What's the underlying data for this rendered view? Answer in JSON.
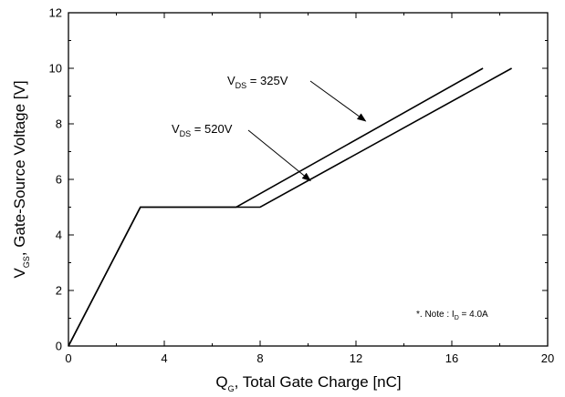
{
  "chart_data": {
    "type": "line",
    "title": "",
    "xlabel": {
      "main": "Q",
      "sub": "G",
      "rest": ", Total Gate Charge [nC]"
    },
    "ylabel": {
      "main": "V",
      "sub": "GS",
      "rest": ", Gate-Source Voltage [V]"
    },
    "xlim": [
      0,
      20
    ],
    "ylim": [
      0,
      12
    ],
    "xticks": [
      0,
      4,
      8,
      12,
      16,
      20
    ],
    "yticks": [
      0,
      2,
      4,
      6,
      8,
      10,
      12
    ],
    "grid": false,
    "series": [
      {
        "name": "VDS = 325V",
        "points": [
          [
            0,
            0
          ],
          [
            3,
            5
          ],
          [
            7,
            5
          ],
          [
            17.3,
            10
          ]
        ]
      },
      {
        "name": "VDS = 520V",
        "points": [
          [
            0,
            0
          ],
          [
            3,
            5
          ],
          [
            8,
            5
          ],
          [
            18.5,
            10
          ]
        ]
      }
    ],
    "annotations": [
      {
        "main": "V",
        "sub": "DS",
        "rest": " = 325V",
        "arrow_to": [
          12.4,
          8.1
        ]
      },
      {
        "main": "V",
        "sub": "DS",
        "rest": " = 520V",
        "arrow_to": [
          10.1,
          5.95
        ]
      }
    ],
    "note": {
      "prefix": "*. Note : I",
      "sub": "D",
      "rest": " = 4.0A"
    }
  }
}
